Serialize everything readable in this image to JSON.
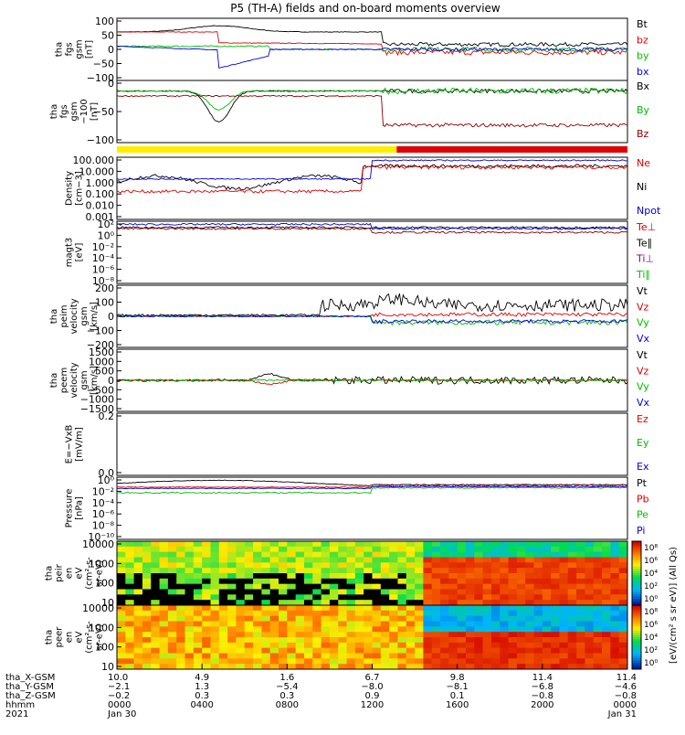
{
  "title": "P5 (TH-A) fields and on-board moments overview",
  "chart_data": [
    {
      "type": "line",
      "ylabel": [
        "tha",
        "fgs",
        "gsm",
        "[nT]"
      ],
      "ylim": [
        -100,
        100
      ],
      "yticks": [
        "100",
        "50",
        "0",
        "−50",
        "−100"
      ],
      "legend": [
        "Bt",
        "bz",
        "by",
        "bx"
      ],
      "legend_colors": [
        "#000000",
        "#dd0000",
        "#00bb00",
        "#0000dd"
      ]
    },
    {
      "type": "line",
      "ylabel": [
        "tha",
        "fgs",
        "gsm",
        "−100",
        "[nT]"
      ],
      "ylim": [
        -120,
        20
      ],
      "yticks": [
        "0",
        "−50",
        "−100"
      ],
      "legend": [
        "Bx",
        "By",
        "Bz"
      ],
      "legend_colors": [
        "#000000",
        "#00bb00",
        "#880000"
      ]
    },
    {
      "type": "bar",
      "segments": [
        {
          "from": 0.0,
          "to": 0.548,
          "color": "#ffee00"
        },
        {
          "from": 0.548,
          "to": 1.0,
          "color": "#e00000"
        }
      ]
    },
    {
      "type": "line",
      "ylabel": [
        "Density",
        "[cm−3]"
      ],
      "ylim": [
        0.001,
        100
      ],
      "yticks": [
        "100.000",
        "10.000",
        "1.000",
        "0.100",
        "0.010",
        "0.001"
      ],
      "legend": [
        "Ne",
        "Ni",
        "Npot"
      ],
      "legend_colors": [
        "#dd0000",
        "#000000",
        "#0000dd"
      ]
    },
    {
      "type": "line",
      "ylabel": [
        "magt3",
        "[eV]"
      ],
      "yticks": [
        "10²",
        "10⁰",
        "10⁻²",
        "10⁻⁴",
        "10⁻⁶",
        "10⁻⁸"
      ],
      "legend": [
        "Te⊥",
        "Te∥",
        "Ti⊥",
        "Ti∥"
      ],
      "legend_colors": [
        "#dd0000",
        "#000000",
        "#880088",
        "#00bb00"
      ]
    },
    {
      "type": "line",
      "ylabel": [
        "tha",
        "peim",
        "velocity",
        "gsm",
        "[km/s]"
      ],
      "ylim": [
        -200,
        200
      ],
      "yticks": [
        "200",
        "100",
        "0",
        "−100",
        "−200"
      ],
      "legend": [
        "Vt",
        "Vz",
        "Vy",
        "Vx"
      ],
      "legend_colors": [
        "#000000",
        "#dd0000",
        "#00bb00",
        "#0000dd"
      ]
    },
    {
      "type": "line",
      "ylabel": [
        "tha",
        "peem",
        "velocity",
        "gsm",
        "[km/s]"
      ],
      "ylim": [
        -1500,
        1500
      ],
      "yticks": [
        "1500",
        "1000",
        "500",
        "0",
        "−500",
        "−1000",
        "−1500"
      ],
      "legend": [
        "Vt",
        "Vz",
        "Vy",
        "Vx"
      ],
      "legend_colors": [
        "#000000",
        "#dd0000",
        "#00bb00",
        "#0000dd"
      ]
    },
    {
      "type": "line",
      "ylabel": [
        "E=−VxB",
        "[mV/m]"
      ],
      "yticks": [
        "0.2",
        "0.0"
      ],
      "legend": [
        "Ez",
        "Ey",
        "Ex"
      ],
      "legend_colors": [
        "#dd0000",
        "#00bb00",
        "#0000dd"
      ]
    },
    {
      "type": "line",
      "ylabel": [
        "Pressure",
        "[nPa]"
      ],
      "yticks": [
        "10⁰",
        "10⁻²",
        "10⁻⁴",
        "10⁻⁶",
        "10⁻⁸",
        "10⁻¹⁰"
      ],
      "legend": [
        "Pt",
        "Pb",
        "Pe",
        "Pi"
      ],
      "legend_colors": [
        "#000000",
        "#dd0000",
        "#00bb00",
        "#0000dd"
      ]
    },
    {
      "type": "heatmap",
      "ylabel": [
        "tha",
        "peir",
        "en",
        "eV",
        "(cm²-s-",
        "sr-eV)"
      ],
      "yticks": [
        "10000",
        "1000",
        "100",
        "10"
      ]
    },
    {
      "type": "heatmap",
      "ylabel": [
        "tha",
        "peer",
        "en",
        "eV",
        "(cm²-s-",
        "sr-eV)"
      ],
      "yticks": [
        "10000",
        "1000",
        "100",
        "10"
      ]
    }
  ],
  "colorbar": {
    "label": "[eV/(cm² s sr eV)] (All Qs)",
    "ticks_top": [
      "10⁸",
      "10⁶",
      "10⁴",
      "10²",
      "10⁰"
    ],
    "ticks_bottom": [
      "10⁸",
      "10⁶",
      "10⁴",
      "10²",
      "10⁰"
    ]
  },
  "xaxis": {
    "row_labels": [
      "tha_X-GSM",
      "tha_Y-GSM",
      "tha_Z-GSM",
      "hhmm",
      "2021"
    ],
    "columns": [
      [
        "10.0",
        "−2.1",
        "−0.2",
        "0000",
        "Jan 30"
      ],
      [
        "4.9",
        "1.3",
        "0.3",
        "0400",
        ""
      ],
      [
        "1.6",
        "−5.4",
        "0.3",
        "0800",
        ""
      ],
      [
        "6.7",
        "−8.0",
        "0.9",
        "1200",
        ""
      ],
      [
        "9.8",
        "−8.1",
        "0.1",
        "1600",
        ""
      ],
      [
        "11.4",
        "−6.8",
        "−0.8",
        "2000",
        ""
      ],
      [
        "11.4",
        "−4.6",
        "−0.8",
        "0000",
        "Jan 31"
      ]
    ]
  }
}
